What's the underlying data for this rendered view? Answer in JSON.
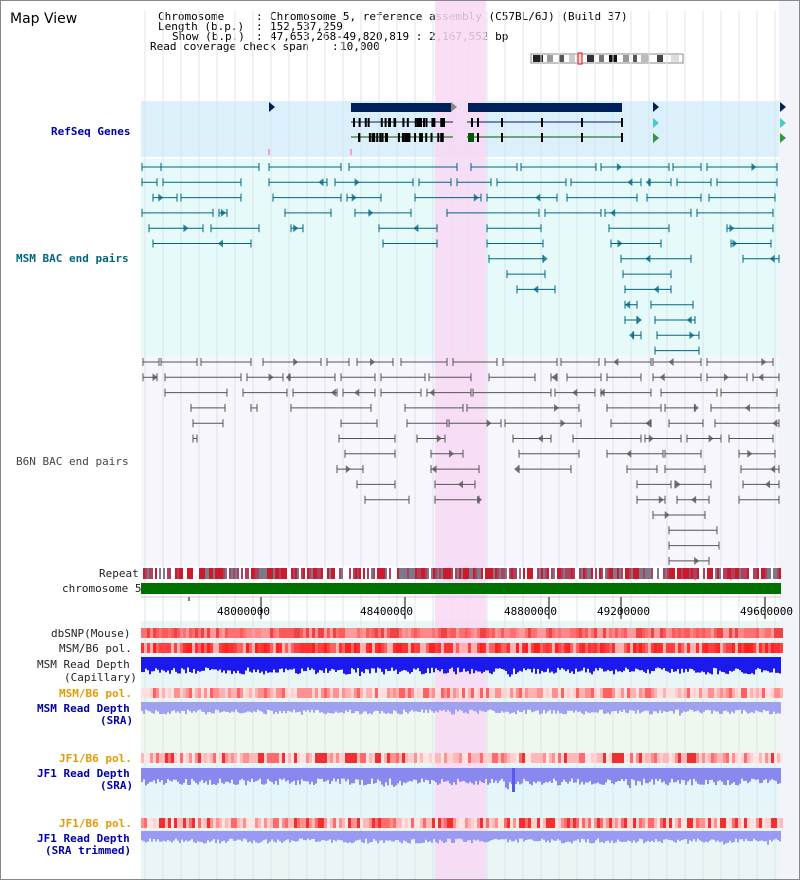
{
  "window": {
    "title": "Map View"
  },
  "info": {
    "chromosome_label": "Chromosome",
    "chromosome_value": "Chromosome 5, reference assembly (C57BL/6J) (Build 37)",
    "length_label": "Length (b.p.)",
    "length_value": "152,537,259",
    "show_label": "Show (b.p.)",
    "show_value": "47,653,268-49,820,819 : 2,167,552 bp",
    "coverage_label": "Read coverage check span",
    "coverage_value": "10,000"
  },
  "tracks": {
    "refseq": "RefSeq Genes",
    "msm_bac": "MSM BAC end pairs",
    "b6n_bac": "B6N BAC end pairs",
    "repeat": "Repeat",
    "chromosome": "chromosome 5",
    "dbsnp": "dbSNP(Mouse)",
    "msm_b6_pol_1": "MSM/B6 pol.",
    "msm_read_depth_cap_1": "MSM Read Depth",
    "msm_read_depth_cap_2": "(Capillary)",
    "msm_b6_pol_2": "MSM/B6 pol.",
    "msm_read_depth_sra_1": "MSM Read Depth",
    "msm_read_depth_sra_2": "(SRA)",
    "jf1_b6_pol_1": "JF1/B6 pol.",
    "jf1_read_depth_sra_1": "JF1 Read Depth",
    "jf1_read_depth_sra_2": "(SRA)",
    "jf1_b6_pol_2": "JF1/B6 pol.",
    "jf1_read_depth_trim_1": "JF1 Read Depth",
    "jf1_read_depth_trim_2": "(SRA trimmed)"
  },
  "axis": {
    "ticks": [
      "48000000",
      "48400000",
      "48800000",
      "49200000",
      "49600000"
    ]
  },
  "colors": {
    "highlight": "#f8d8f4",
    "refseq_bg": "#dcf0fc",
    "msm_bg": "#e6fafa",
    "b6n_bg": "#f6f6fc",
    "lower_bg": "#eaf6f6",
    "gene": "#00205a",
    "msm_feature": "#006680",
    "b6n_feature": "#555555",
    "chromosome_bar": "#007000",
    "depth_blue": "#1a1aee",
    "depth_light": "#8888ee"
  }
}
